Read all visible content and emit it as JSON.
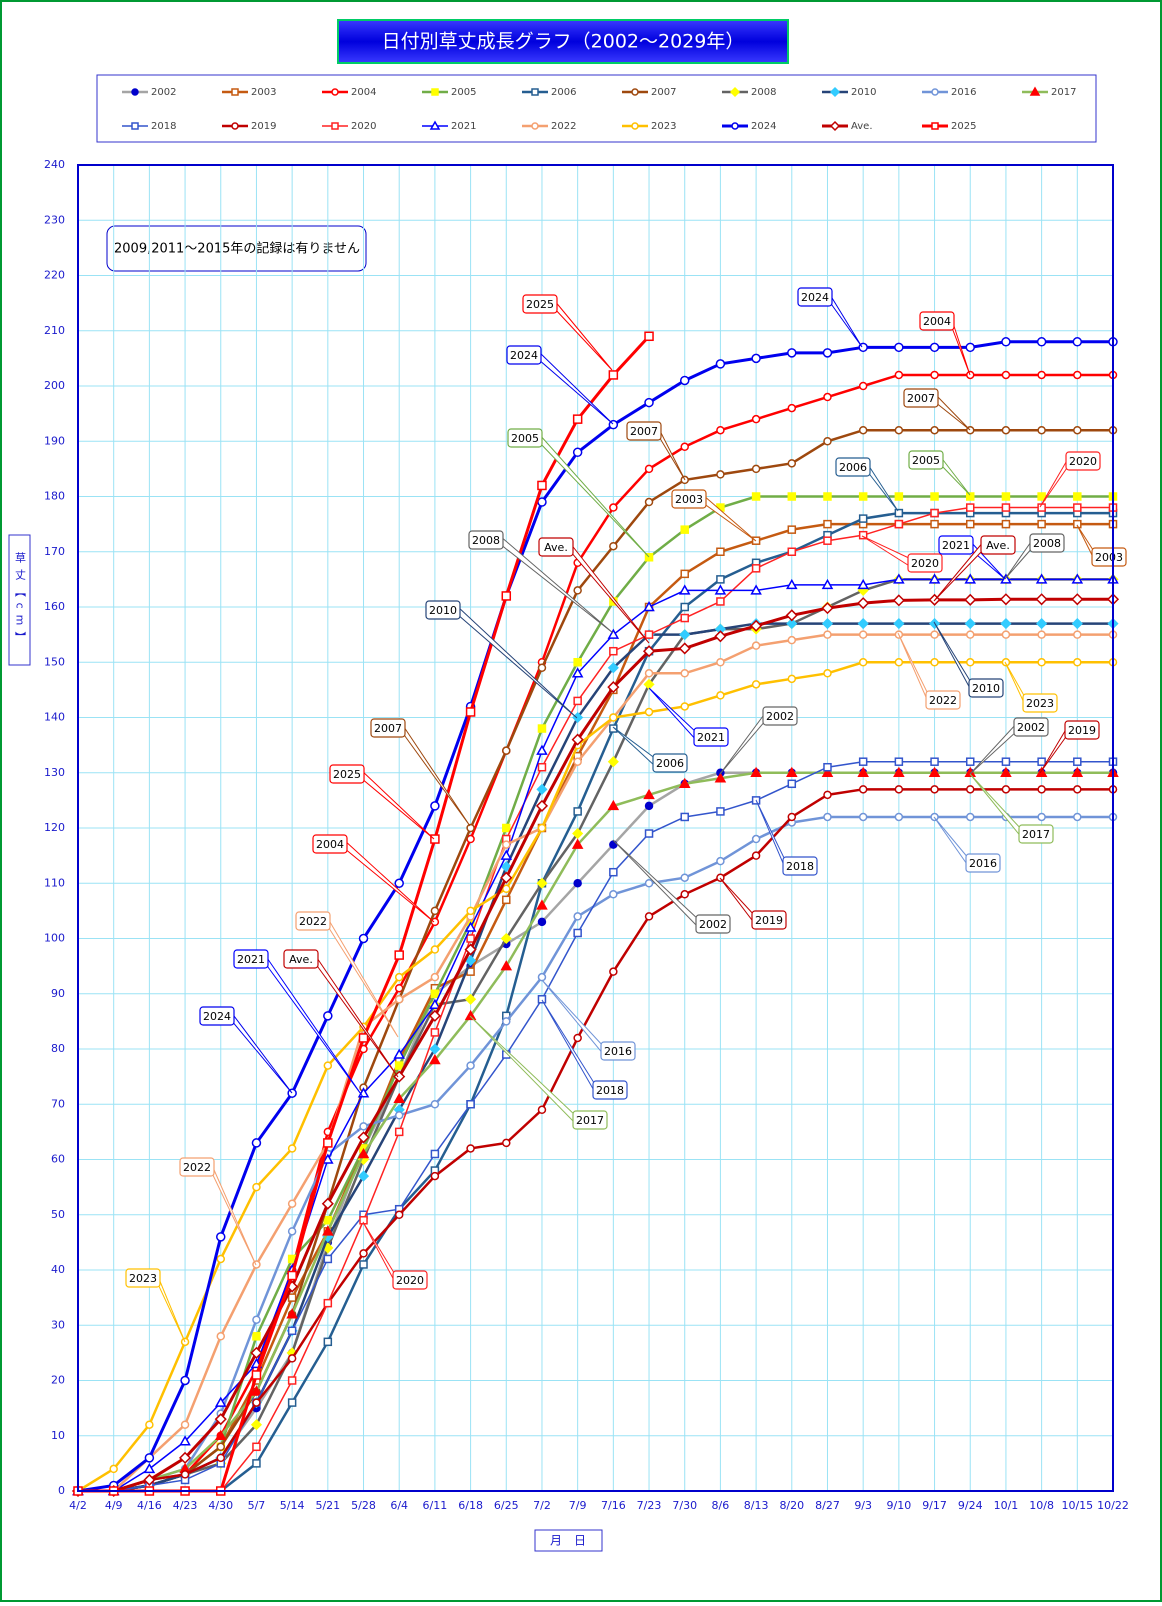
{
  "chart_data": {
    "type": "line",
    "title": "日付別草丈成長グラフ（2002～2029年）",
    "note": "2009,2011～2015年の記録は有りません",
    "y_axis_label": "草丈【cm】",
    "x_axis_label": "月　日",
    "categories": [
      "4/2",
      "4/9",
      "4/16",
      "4/23",
      "4/30",
      "5/7",
      "5/14",
      "5/21",
      "5/28",
      "6/4",
      "6/11",
      "6/18",
      "6/25",
      "7/2",
      "7/9",
      "7/16",
      "7/23",
      "7/30",
      "8/6",
      "8/13",
      "8/20",
      "8/27",
      "9/3",
      "9/10",
      "9/17",
      "9/24",
      "10/1",
      "10/8",
      "10/15",
      "10/22"
    ],
    "ylim": [
      0,
      240
    ],
    "yticks": [
      0,
      10,
      20,
      30,
      40,
      50,
      60,
      70,
      80,
      90,
      100,
      110,
      120,
      130,
      140,
      150,
      160,
      170,
      180,
      190,
      200,
      210,
      220,
      230,
      240
    ],
    "grid": true,
    "series": [
      {
        "name": "2002",
        "color": "#a5a5a5",
        "marker": "circle",
        "marker_fill": "#0000cc",
        "width": 2.5,
        "values": [
          0,
          0,
          2,
          3,
          6,
          15,
          25,
          45,
          62,
          75,
          90,
          95,
          99,
          103,
          110,
          117,
          124,
          128,
          130,
          130,
          130,
          130,
          130,
          130,
          130,
          130,
          130,
          130,
          130,
          130
        ]
      },
      {
        "name": "2003",
        "color": "#c55a11",
        "marker": "square",
        "marker_fill": "#ffffff",
        "width": 2.5,
        "values": [
          0,
          0,
          1,
          3,
          8,
          20,
          35,
          47,
          62,
          78,
          91,
          94,
          107,
          120,
          133,
          145,
          160,
          166,
          170,
          172,
          174,
          175,
          175,
          175,
          175,
          175,
          175,
          175,
          175,
          175
        ]
      },
      {
        "name": "2004",
        "color": "#ff0000",
        "marker": "circle",
        "marker_fill": "#ffffff",
        "width": 2.5,
        "values": [
          0,
          0,
          1,
          3,
          10,
          22,
          40,
          65,
          80,
          91,
          103,
          118,
          134,
          150,
          168,
          178,
          185,
          189,
          192,
          194,
          196,
          198,
          200,
          202,
          202,
          202,
          202,
          202,
          202,
          202
        ]
      },
      {
        "name": "2005",
        "color": "#70ad47",
        "marker": "square",
        "marker_fill": "#ffff00",
        "width": 2.5,
        "values": [
          0,
          0,
          1,
          3,
          8,
          28,
          42,
          49,
          62,
          77,
          90,
          103,
          120,
          138,
          150,
          161,
          169,
          174,
          178,
          180,
          180,
          180,
          180,
          180,
          180,
          180,
          180,
          180,
          180,
          180
        ]
      },
      {
        "name": "2006",
        "color": "#255e91",
        "marker": "square",
        "marker_fill": "#ffffff",
        "width": 2.5,
        "values": [
          0,
          0,
          0,
          0,
          0,
          5,
          16,
          27,
          41,
          51,
          58,
          70,
          86,
          110,
          123,
          138,
          152,
          160,
          165,
          168,
          170,
          173,
          176,
          177,
          177,
          177,
          177,
          177,
          177,
          177
        ]
      },
      {
        "name": "2007",
        "color": "#9e480e",
        "marker": "circle",
        "marker_fill": "#ffffff",
        "width": 2.5,
        "values": [
          0,
          0,
          1,
          3,
          8,
          18,
          32,
          52,
          73,
          89,
          105,
          120,
          134,
          149,
          163,
          171,
          179,
          183,
          184,
          185,
          186,
          190,
          192,
          192,
          192,
          192,
          192,
          192,
          192,
          192
        ]
      },
      {
        "name": "2008",
        "color": "#636363",
        "marker": "diamond",
        "marker_fill": "#ffff00",
        "width": 2.5,
        "values": [
          0,
          0,
          1,
          3,
          5,
          12,
          25,
          44,
          60,
          75,
          88,
          89,
          100,
          110,
          119,
          132,
          146,
          155,
          156,
          156,
          157,
          160,
          163,
          165,
          165,
          165,
          165,
          165,
          165,
          165
        ]
      },
      {
        "name": "2010",
        "color": "#264478",
        "marker": "diamond",
        "marker_fill": "#33ccff",
        "width": 2.5,
        "values": [
          0,
          0,
          1,
          3,
          6,
          16,
          29,
          46,
          57,
          69,
          80,
          96,
          113,
          127,
          140,
          149,
          155,
          155,
          156,
          157,
          157,
          157,
          157,
          157,
          157,
          157,
          157,
          157,
          157,
          157
        ]
      },
      {
        "name": "2016",
        "color": "#7094d8",
        "marker": "circle",
        "marker_fill": "#ffffff",
        "width": 2.5,
        "values": [
          0,
          0,
          2,
          4,
          14,
          31,
          47,
          61,
          66,
          68,
          70,
          77,
          85,
          93,
          104,
          108,
          110,
          111,
          114,
          118,
          121,
          122,
          122,
          122,
          122,
          122,
          122,
          122,
          122,
          122
        ]
      },
      {
        "name": "2017",
        "color": "#8fbc5a",
        "marker": "triangle",
        "marker_fill": "#ff0000",
        "width": 2.5,
        "values": [
          0,
          0,
          2,
          4,
          10,
          18,
          32,
          47,
          61,
          71,
          78,
          86,
          95,
          106,
          117,
          124,
          126,
          128,
          129,
          130,
          130,
          130,
          130,
          130,
          130,
          130,
          130,
          130,
          130,
          130
        ]
      },
      {
        "name": "2018",
        "color": "#3355cc",
        "marker": "square",
        "marker_fill": "#ffffff",
        "width": 1.5,
        "values": [
          0,
          0,
          1,
          2,
          5,
          16,
          29,
          42,
          50,
          51,
          61,
          70,
          79,
          89,
          101,
          112,
          119,
          122,
          123,
          125,
          128,
          131,
          132,
          132,
          132,
          132,
          132,
          132,
          132,
          132
        ]
      },
      {
        "name": "2019",
        "color": "#c00000",
        "marker": "circle",
        "marker_fill": "#ffffff",
        "width": 2.5,
        "values": [
          0,
          0,
          2,
          3,
          6,
          16,
          24,
          34,
          43,
          50,
          57,
          62,
          63,
          69,
          82,
          94,
          104,
          108,
          111,
          115,
          122,
          126,
          127,
          127,
          127,
          127,
          127,
          127,
          127,
          127
        ]
      },
      {
        "name": "2020",
        "color": "#ff2222",
        "marker": "square",
        "marker_fill": "#ffffff",
        "width": 1.5,
        "values": [
          0,
          0,
          0,
          0,
          0,
          8,
          20,
          34,
          49,
          65,
          83,
          100,
          118,
          131,
          143,
          152,
          155,
          158,
          161,
          167,
          170,
          172,
          173,
          175,
          177,
          178,
          178,
          178,
          178,
          178
        ]
      },
      {
        "name": "2021",
        "color": "#0000ff",
        "marker": "triangle",
        "marker_fill": "#ffffff",
        "width": 1.5,
        "values": [
          0,
          0,
          4,
          9,
          16,
          23,
          40,
          60,
          72,
          79,
          88,
          102,
          115,
          134,
          148,
          155,
          160,
          163,
          163,
          163,
          164,
          164,
          164,
          165,
          165,
          165,
          165,
          165,
          165,
          165
        ]
      },
      {
        "name": "2022",
        "color": "#f4a070",
        "marker": "circle",
        "marker_fill": "#ffffff",
        "width": 2.5,
        "values": [
          0,
          0,
          6,
          12,
          28,
          41,
          52,
          63,
          84,
          89,
          93,
          104,
          117,
          120,
          132,
          140,
          148,
          148,
          150,
          153,
          154,
          155,
          155,
          155,
          155,
          155,
          155,
          155,
          155,
          155
        ]
      },
      {
        "name": "2023",
        "color": "#ffc000",
        "marker": "circle",
        "marker_fill": "#ffffff",
        "width": 2.5,
        "values": [
          0,
          4,
          12,
          27,
          42,
          55,
          62,
          77,
          84,
          93,
          98,
          105,
          109,
          120,
          135,
          140,
          141,
          142,
          144,
          146,
          147,
          148,
          150,
          150,
          150,
          150,
          150,
          150,
          150,
          150
        ]
      },
      {
        "name": "2024",
        "color": "#0000ee",
        "marker": "circle",
        "marker_fill": "#ffffff",
        "width": 3,
        "values": [
          0,
          1,
          6,
          20,
          46,
          63,
          72,
          86,
          100,
          110,
          124,
          142,
          162,
          179,
          188,
          193,
          197,
          201,
          204,
          205,
          206,
          206,
          207,
          207,
          207,
          207,
          208,
          208,
          208,
          208
        ]
      },
      {
        "name": "Ave.",
        "color": "#c00000",
        "marker": "diamond",
        "marker_fill": "#ffffff",
        "width": 3,
        "values": [
          0,
          0,
          2,
          6,
          13,
          25,
          37,
          52,
          64,
          75,
          86,
          98,
          111,
          124,
          136,
          145.5,
          152,
          152.5,
          154.7,
          156.6,
          158.5,
          159.8,
          160.7,
          161.2,
          161.3,
          161.3,
          161.4,
          161.4,
          161.4,
          161.4
        ]
      },
      {
        "name": "2025",
        "color": "#ff0000",
        "marker": "square",
        "marker_fill": "#ffffff",
        "width": 3,
        "values": [
          0,
          0,
          0,
          0,
          0,
          21,
          39,
          63,
          82,
          97,
          118,
          141,
          162,
          182,
          194,
          202,
          209,
          null,
          null,
          null,
          null,
          null,
          null,
          null,
          null,
          null,
          null,
          null,
          null,
          null
        ]
      }
    ],
    "annotations": [
      "2025",
      "2024",
      "2005",
      "2007",
      "2003",
      "2008",
      "Ave.",
      "2010",
      "2007",
      "2025",
      "2004",
      "2022",
      "Ave.",
      "2021",
      "2024",
      "2022",
      "2023",
      "2020",
      "2017",
      "2018",
      "2016",
      "2006",
      "2021",
      "2002",
      "2002",
      "2019",
      "2018",
      "2017",
      "2016",
      "2002",
      "2019",
      "2023",
      "2010",
      "2022",
      "2020",
      "2021",
      "Ave.",
      "2008",
      "2003",
      "2006",
      "2005",
      "2020",
      "2007",
      "2004",
      "2024"
    ]
  }
}
